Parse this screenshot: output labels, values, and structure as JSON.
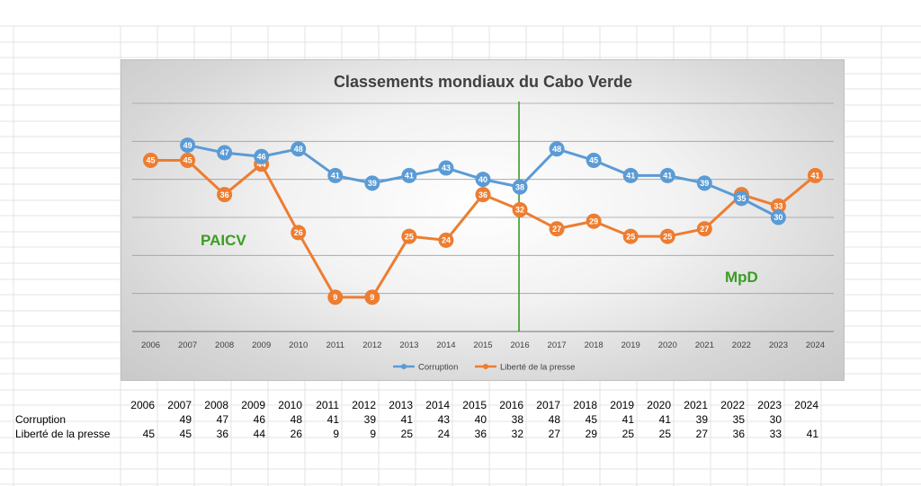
{
  "table": {
    "years": [
      "2006",
      "2007",
      "2008",
      "2009",
      "2010",
      "2011",
      "2012",
      "2013",
      "2014",
      "2015",
      "2016",
      "2017",
      "2018",
      "2019",
      "2020",
      "2021",
      "2022",
      "2023",
      "2024"
    ],
    "rows": [
      {
        "label": "Corruption",
        "values": [
          "",
          "49",
          "47",
          "46",
          "48",
          "41",
          "39",
          "41",
          "43",
          "40",
          "38",
          "48",
          "45",
          "41",
          "41",
          "39",
          "35",
          "30",
          ""
        ]
      },
      {
        "label": "Liberté de la presse",
        "values": [
          "45",
          "45",
          "36",
          "44",
          "26",
          "9",
          "9",
          "25",
          "24",
          "36",
          "32",
          "27",
          "29",
          "25",
          "25",
          "27",
          "36",
          "33",
          "41"
        ]
      }
    ]
  },
  "annotations": {
    "left_party": "PAICV",
    "right_party": "MpD",
    "divider_year": "2016",
    "divider_color": "#3a9d23"
  },
  "chart_data": {
    "type": "line",
    "title": "Classements mondiaux du Cabo Verde",
    "xlabel": "",
    "ylabel": "",
    "categories": [
      "2006",
      "2007",
      "2008",
      "2009",
      "2010",
      "2011",
      "2012",
      "2013",
      "2014",
      "2015",
      "2016",
      "2017",
      "2018",
      "2019",
      "2020",
      "2021",
      "2022",
      "2023",
      "2024"
    ],
    "series": [
      {
        "name": "Corruption",
        "color": "#5b9bd5",
        "values": [
          null,
          49,
          47,
          46,
          48,
          41,
          39,
          41,
          43,
          40,
          38,
          48,
          45,
          41,
          41,
          39,
          35,
          30,
          null
        ]
      },
      {
        "name": "Liberté de la presse",
        "color": "#ed7d31",
        "values": [
          45,
          45,
          36,
          44,
          26,
          9,
          9,
          25,
          24,
          36,
          32,
          27,
          29,
          25,
          25,
          27,
          36,
          33,
          41
        ]
      }
    ],
    "ylim": [
      0,
      60
    ],
    "grid": true,
    "legend_position": "bottom",
    "data_labels": true
  }
}
